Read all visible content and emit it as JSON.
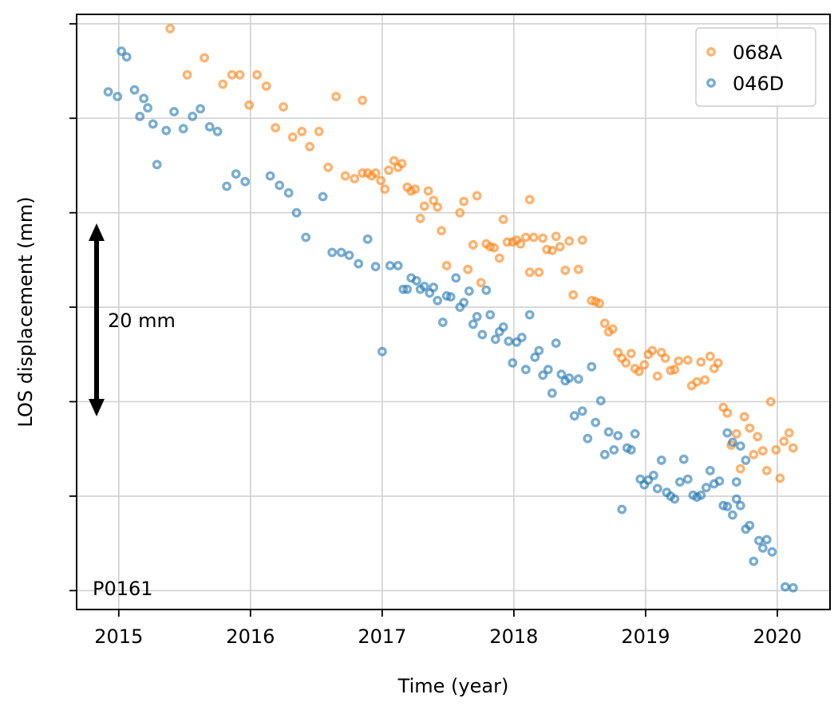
{
  "chart_data": {
    "type": "scatter",
    "title": "",
    "xlabel": "Time (year)",
    "ylabel": "LOS displacement (mm)",
    "xlim": [
      2014.68,
      2020.4
    ],
    "ylim": [
      -62.0,
      1.0
    ],
    "x_ticks": [
      2015,
      2016,
      2017,
      2018,
      2019,
      2020
    ],
    "x_tick_labels": [
      "2015",
      "2016",
      "2017",
      "2018",
      "2019",
      "2020"
    ],
    "y_ticks": [
      -60,
      -50,
      -40,
      -30,
      -20,
      -10,
      0
    ],
    "y_tick_labels_visible": false,
    "grid": true,
    "legend_position": "top-right",
    "series": [
      {
        "name": "068A",
        "color": "#ff7f0e",
        "points": [
          [
            2015.39,
            -0.5
          ],
          [
            2015.52,
            -5.4
          ],
          [
            2015.65,
            -3.6
          ],
          [
            2015.79,
            -6.4
          ],
          [
            2015.86,
            -5.4
          ],
          [
            2015.92,
            -5.4
          ],
          [
            2015.99,
            -8.6
          ],
          [
            2016.05,
            -5.4
          ],
          [
            2016.12,
            -6.6
          ],
          [
            2016.19,
            -11.0
          ],
          [
            2016.25,
            -8.8
          ],
          [
            2016.32,
            -12.0
          ],
          [
            2016.39,
            -11.4
          ],
          [
            2016.45,
            -13.0
          ],
          [
            2016.52,
            -11.4
          ],
          [
            2016.59,
            -15.2
          ],
          [
            2016.65,
            -7.7
          ],
          [
            2016.72,
            -16.1
          ],
          [
            2016.79,
            -16.4
          ],
          [
            2016.85,
            -8.1
          ],
          [
            2016.85,
            -15.8
          ],
          [
            2016.89,
            -15.8
          ],
          [
            2016.92,
            -16.1
          ],
          [
            2016.95,
            -15.8
          ],
          [
            2016.99,
            -16.6
          ],
          [
            2017.02,
            -17.5
          ],
          [
            2017.05,
            -15.5
          ],
          [
            2017.09,
            -14.5
          ],
          [
            2017.12,
            -15.2
          ],
          [
            2017.15,
            -14.8
          ],
          [
            2017.19,
            -17.3
          ],
          [
            2017.22,
            -17.7
          ],
          [
            2017.25,
            -17.5
          ],
          [
            2017.29,
            -20.6
          ],
          [
            2017.32,
            -19.3
          ],
          [
            2017.35,
            -17.7
          ],
          [
            2017.39,
            -18.7
          ],
          [
            2017.42,
            -19.4
          ],
          [
            2017.45,
            -21.9
          ],
          [
            2017.49,
            -25.6
          ],
          [
            2017.59,
            -20.0
          ],
          [
            2017.62,
            -18.8
          ],
          [
            2017.65,
            -26.0
          ],
          [
            2017.69,
            -23.4
          ],
          [
            2017.72,
            -18.2
          ],
          [
            2017.75,
            -27.4
          ],
          [
            2017.79,
            -23.3
          ],
          [
            2017.82,
            -23.6
          ],
          [
            2017.85,
            -23.7
          ],
          [
            2017.89,
            -24.8
          ],
          [
            2017.92,
            -20.7
          ],
          [
            2017.95,
            -23.1
          ],
          [
            2017.99,
            -23.1
          ],
          [
            2018.02,
            -22.9
          ],
          [
            2018.05,
            -23.3
          ],
          [
            2018.09,
            -22.6
          ],
          [
            2018.12,
            -18.6
          ],
          [
            2018.12,
            -26.3
          ],
          [
            2018.15,
            -22.6
          ],
          [
            2018.19,
            -26.3
          ],
          [
            2018.22,
            -22.7
          ],
          [
            2018.25,
            -23.9
          ],
          [
            2018.29,
            -24.0
          ],
          [
            2018.32,
            -22.5
          ],
          [
            2018.35,
            -23.6
          ],
          [
            2018.39,
            -26.1
          ],
          [
            2018.42,
            -23.0
          ],
          [
            2018.45,
            -28.7
          ],
          [
            2018.49,
            -26.0
          ],
          [
            2018.52,
            -22.9
          ],
          [
            2018.59,
            -29.3
          ],
          [
            2018.62,
            -29.4
          ],
          [
            2018.65,
            -29.6
          ],
          [
            2018.69,
            -31.7
          ],
          [
            2018.72,
            -32.6
          ],
          [
            2018.75,
            -32.3
          ],
          [
            2018.79,
            -34.8
          ],
          [
            2018.82,
            -35.4
          ],
          [
            2018.85,
            -35.9
          ],
          [
            2018.89,
            -34.9
          ],
          [
            2018.92,
            -36.5
          ],
          [
            2018.95,
            -36.8
          ],
          [
            2018.99,
            -36.1
          ],
          [
            2019.02,
            -35.0
          ],
          [
            2019.05,
            -34.6
          ],
          [
            2019.09,
            -37.3
          ],
          [
            2019.12,
            -34.8
          ],
          [
            2019.15,
            -35.4
          ],
          [
            2019.19,
            -36.7
          ],
          [
            2019.22,
            -36.6
          ],
          [
            2019.25,
            -35.7
          ],
          [
            2019.32,
            -35.6
          ],
          [
            2019.35,
            -38.3
          ],
          [
            2019.39,
            -37.9
          ],
          [
            2019.42,
            -35.8
          ],
          [
            2019.45,
            -37.7
          ],
          [
            2019.49,
            -35.2
          ],
          [
            2019.52,
            -36.5
          ],
          [
            2019.55,
            -35.9
          ],
          [
            2019.59,
            -40.6
          ],
          [
            2019.62,
            -41.2
          ],
          [
            2019.65,
            -44.6
          ],
          [
            2019.69,
            -43.4
          ],
          [
            2019.72,
            -47.1
          ],
          [
            2019.75,
            -41.6
          ],
          [
            2019.79,
            -42.8
          ],
          [
            2019.82,
            -45.6
          ],
          [
            2019.85,
            -43.7
          ],
          [
            2019.89,
            -45.2
          ],
          [
            2019.92,
            -47.3
          ],
          [
            2019.95,
            -40.0
          ],
          [
            2019.99,
            -45.1
          ],
          [
            2020.02,
            -48.1
          ],
          [
            2020.05,
            -44.2
          ],
          [
            2020.09,
            -43.3
          ],
          [
            2020.12,
            -44.9
          ]
        ]
      },
      {
        "name": "046D",
        "color": "#1f77b4",
        "points": [
          [
            2014.92,
            -7.2
          ],
          [
            2014.99,
            -7.7
          ],
          [
            2015.02,
            -2.9
          ],
          [
            2015.06,
            -3.5
          ],
          [
            2015.12,
            -7.0
          ],
          [
            2015.16,
            -9.8
          ],
          [
            2015.19,
            -7.9
          ],
          [
            2015.22,
            -8.9
          ],
          [
            2015.26,
            -10.6
          ],
          [
            2015.29,
            -14.9
          ],
          [
            2015.36,
            -11.3
          ],
          [
            2015.42,
            -9.3
          ],
          [
            2015.49,
            -11.1
          ],
          [
            2015.56,
            -9.8
          ],
          [
            2015.62,
            -9.0
          ],
          [
            2015.69,
            -10.9
          ],
          [
            2015.75,
            -11.4
          ],
          [
            2015.82,
            -17.2
          ],
          [
            2015.89,
            -15.9
          ],
          [
            2015.96,
            -16.7
          ],
          [
            2016.15,
            -16.1
          ],
          [
            2016.22,
            -17.1
          ],
          [
            2016.29,
            -17.9
          ],
          [
            2016.35,
            -20.0
          ],
          [
            2016.42,
            -22.6
          ],
          [
            2016.55,
            -18.3
          ],
          [
            2016.62,
            -24.2
          ],
          [
            2016.69,
            -24.2
          ],
          [
            2016.75,
            -24.5
          ],
          [
            2016.82,
            -25.4
          ],
          [
            2016.89,
            -22.8
          ],
          [
            2016.95,
            -25.7
          ],
          [
            2017.0,
            -34.7
          ],
          [
            2017.06,
            -25.6
          ],
          [
            2017.12,
            -25.6
          ],
          [
            2017.16,
            -28.1
          ],
          [
            2017.19,
            -28.1
          ],
          [
            2017.22,
            -26.9
          ],
          [
            2017.26,
            -27.2
          ],
          [
            2017.29,
            -28.1
          ],
          [
            2017.32,
            -27.8
          ],
          [
            2017.36,
            -28.5
          ],
          [
            2017.39,
            -27.9
          ],
          [
            2017.42,
            -29.3
          ],
          [
            2017.46,
            -31.6
          ],
          [
            2017.49,
            -28.8
          ],
          [
            2017.52,
            -28.9
          ],
          [
            2017.56,
            -26.9
          ],
          [
            2017.59,
            -30.0
          ],
          [
            2017.62,
            -29.5
          ],
          [
            2017.66,
            -28.3
          ],
          [
            2017.69,
            -31.8
          ],
          [
            2017.72,
            -31.0
          ],
          [
            2017.76,
            -32.9
          ],
          [
            2017.79,
            -28.2
          ],
          [
            2017.82,
            -30.8
          ],
          [
            2017.86,
            -33.4
          ],
          [
            2017.89,
            -32.6
          ],
          [
            2017.92,
            -32.1
          ],
          [
            2017.96,
            -33.6
          ],
          [
            2017.99,
            -35.9
          ],
          [
            2018.02,
            -33.7
          ],
          [
            2018.06,
            -33.2
          ],
          [
            2018.09,
            -36.6
          ],
          [
            2018.12,
            -30.8
          ],
          [
            2018.16,
            -35.3
          ],
          [
            2018.19,
            -34.6
          ],
          [
            2018.22,
            -37.2
          ],
          [
            2018.26,
            -36.6
          ],
          [
            2018.29,
            -39.1
          ],
          [
            2018.32,
            -33.8
          ],
          [
            2018.36,
            -37.1
          ],
          [
            2018.39,
            -37.8
          ],
          [
            2018.42,
            -37.5
          ],
          [
            2018.46,
            -41.5
          ],
          [
            2018.49,
            -37.6
          ],
          [
            2018.52,
            -41.0
          ],
          [
            2018.56,
            -43.9
          ],
          [
            2018.59,
            -36.3
          ],
          [
            2018.62,
            -42.2
          ],
          [
            2018.66,
            -39.9
          ],
          [
            2018.69,
            -45.6
          ],
          [
            2018.72,
            -43.2
          ],
          [
            2018.76,
            -45.1
          ],
          [
            2018.79,
            -43.6
          ],
          [
            2018.82,
            -51.4
          ],
          [
            2018.86,
            -44.9
          ],
          [
            2018.89,
            -45.1
          ],
          [
            2018.92,
            -43.4
          ],
          [
            2018.96,
            -48.2
          ],
          [
            2018.99,
            -48.8
          ],
          [
            2019.02,
            -48.3
          ],
          [
            2019.06,
            -47.8
          ],
          [
            2019.09,
            -49.2
          ],
          [
            2019.12,
            -46.2
          ],
          [
            2019.16,
            -49.6
          ],
          [
            2019.19,
            -50.0
          ],
          [
            2019.22,
            -50.3
          ],
          [
            2019.26,
            -48.5
          ],
          [
            2019.29,
            -46.1
          ],
          [
            2019.32,
            -48.2
          ],
          [
            2019.36,
            -49.9
          ],
          [
            2019.39,
            -50.1
          ],
          [
            2019.42,
            -49.9
          ],
          [
            2019.46,
            -49.1
          ],
          [
            2019.49,
            -47.3
          ],
          [
            2019.52,
            -48.7
          ],
          [
            2019.56,
            -48.4
          ],
          [
            2019.59,
            -51.0
          ],
          [
            2019.62,
            -51.1
          ],
          [
            2019.66,
            -52.0
          ],
          [
            2019.69,
            -50.3
          ],
          [
            2019.72,
            -51.0
          ],
          [
            2019.76,
            -53.5
          ],
          [
            2019.79,
            -53.1
          ],
          [
            2019.82,
            -56.9
          ],
          [
            2019.86,
            -54.7
          ],
          [
            2019.89,
            -55.5
          ],
          [
            2019.92,
            -54.6
          ],
          [
            2019.96,
            -55.9
          ],
          [
            2019.66,
            -44.3
          ],
          [
            2019.72,
            -44.7
          ],
          [
            2019.76,
            -46.2
          ],
          [
            2020.06,
            -59.6
          ],
          [
            2020.12,
            -59.7
          ],
          [
            2019.62,
            -43.3
          ],
          [
            2019.69,
            -48.5
          ]
        ]
      }
    ],
    "annotations": {
      "scale_bar_label": "20 mm",
      "station_label": "P0161"
    }
  }
}
